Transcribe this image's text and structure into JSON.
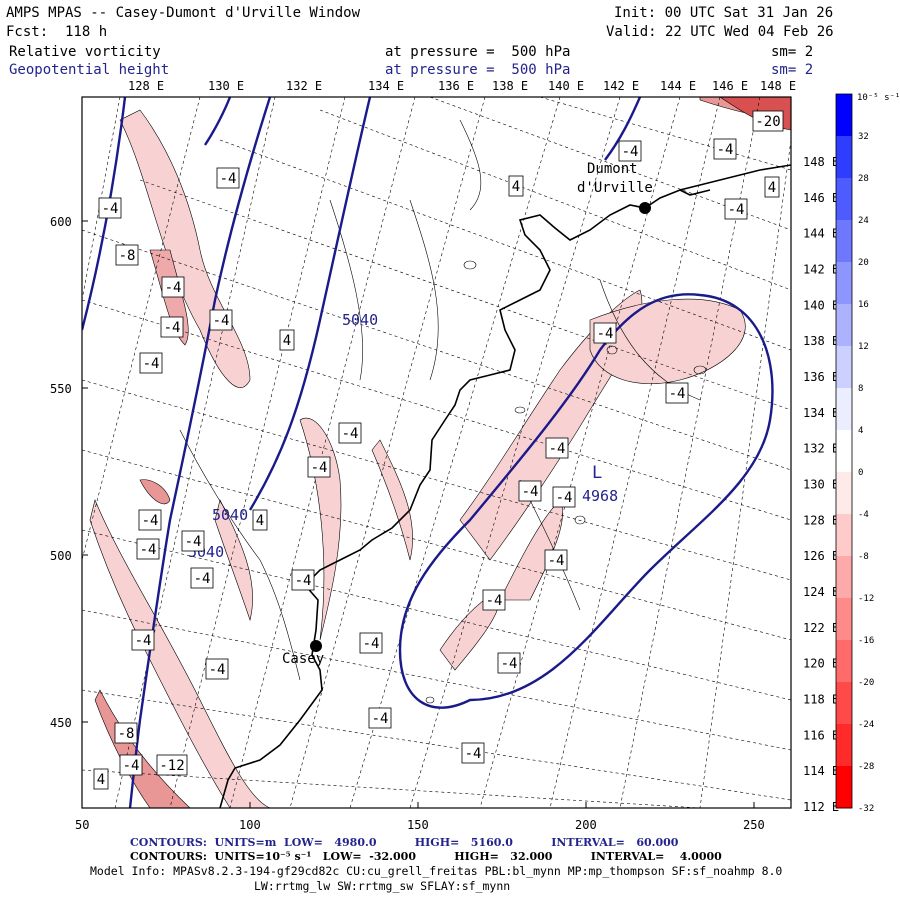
{
  "header": {
    "title": "AMPS MPAS -- Casey-Dumont d'Urville Window",
    "forecast": "Fcst:  118 h",
    "init": "Init: 00 UTC Sat 31 Jan 26",
    "valid": "Valid: 22 UTC Wed 04 Feb 26",
    "field1_name": "Relative vorticity",
    "field1_level": "at pressure =  500 hPa",
    "field1_sm": "sm= 2",
    "field2_name": "Geopotential height",
    "field2_level": "at pressure =  500 hPa",
    "field2_sm": "sm= 2"
  },
  "map": {
    "top_lon_labels": [
      "128 E",
      "130 E",
      "132 E",
      "134 E",
      "136 E",
      "138 E",
      "140 E",
      "142 E",
      "144 E",
      "146 E",
      "148 E"
    ],
    "right_lon_labels": [
      "148 E",
      "146 E",
      "144 E",
      "142 E",
      "140 E",
      "138 E",
      "136 E",
      "134 E",
      "132 E",
      "130 E",
      "128 E",
      "126 E",
      "124 E",
      "122 E",
      "120 E",
      "118 E",
      "116 E",
      "114 E",
      "112 E"
    ],
    "x_ticks": [
      "50",
      "100",
      "150",
      "200",
      "250"
    ],
    "y_ticks": [
      "600",
      "550",
      "500",
      "450"
    ],
    "stations": [
      {
        "name": "Dumont d'Urville",
        "label_line1": "Dumont",
        "label_line2": "d'Urville"
      },
      {
        "name": "Casey",
        "label_line1": "Casey"
      }
    ],
    "height_labels": [
      "5040",
      "5040",
      "5040",
      "4968"
    ],
    "low_marker": "L",
    "vorticity_labels": [
      "-4",
      "-4",
      "-8",
      "-4",
      "-4",
      "-4",
      "4",
      "-4",
      "4",
      "4",
      "-4",
      "-4",
      "-4",
      "-4",
      "-4",
      "-4",
      "-4",
      "-4",
      "-4",
      "-4",
      "-4",
      "-4",
      "-4",
      "-4",
      "-4",
      "-4",
      "-4",
      "-8",
      "-4",
      "-12",
      "4",
      "-4",
      "-4",
      "-4",
      "-20",
      "-4",
      "-4",
      "4",
      "-4"
    ],
    "colors": {
      "coastline": "#000000",
      "height_contour": "#1a1a8a",
      "positive_shading": "#f6c8c8",
      "strong_shading": "#e89696",
      "grid": "#000000"
    }
  },
  "colorbar": {
    "unit_label": "10⁻⁵ s⁻¹",
    "ticks": [
      "32",
      "28",
      "24",
      "20",
      "16",
      "12",
      "8",
      "4",
      "0",
      "-4",
      "-8",
      "-12",
      "-16",
      "-20",
      "-24",
      "-28",
      "-32"
    ],
    "colors": [
      "#0000ff",
      "#2f3dff",
      "#4e5bff",
      "#6e78ff",
      "#8d95ff",
      "#adb2ff",
      "#ccd0ff",
      "#eceeff",
      "#ffffff",
      "#ffeaea",
      "#ffcaca",
      "#ffaaaa",
      "#ff8a8a",
      "#ff6a6a",
      "#ff4a4a",
      "#ff2a2a",
      "#ff0000"
    ]
  },
  "footer": {
    "contours1": "CONTOURS:  UNITS=m  LOW=   4980.0          HIGH=   5160.0          INTERVAL=   60.000",
    "contours2": "CONTOURS:  UNITS=10⁻⁵ s⁻¹   LOW=  -32.000          HIGH=   32.000          INTERVAL=    4.0000",
    "model_info": "Model Info: MPASv8.2.3-194-gf29cd82c CU:cu_grell_freitas PBL:bl_mynn MP:mp_thompson SF:sf_noahmp 8.0",
    "model_info2": "LW:rrtmg_lw SW:rrtmg_sw SFLAY:sf_mynn"
  }
}
